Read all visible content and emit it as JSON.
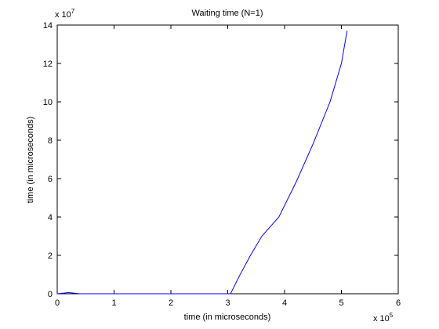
{
  "chart_data": {
    "type": "line",
    "title": "Waiting time (N=1)",
    "xlabel": "time (in microseconds)",
    "ylabel": "time (in microseconds)",
    "x_multiplier": {
      "base": "x 10",
      "exponent": "5"
    },
    "y_multiplier": {
      "base": "x 10",
      "exponent": "7"
    },
    "xlim": [
      0,
      6
    ],
    "xticks": [
      0,
      1,
      2,
      3,
      4,
      5,
      6
    ],
    "ylim": [
      0,
      14
    ],
    "yticks": [
      0,
      2,
      4,
      6,
      8,
      10,
      12,
      14
    ],
    "grid": false,
    "series": [
      {
        "name": "waiting time",
        "color": "#0000ff",
        "x": [
          0,
          0.1,
          0.2,
          0.3,
          0.4,
          1,
          2,
          3,
          3.05,
          3.2,
          3.4,
          3.6,
          3.9,
          4.2,
          4.5,
          4.8,
          5.0,
          5.1
        ],
        "values": [
          0,
          0.03,
          0.06,
          0.03,
          0,
          0,
          0,
          0,
          0,
          0.9,
          2,
          3,
          4,
          5.8,
          7.8,
          10,
          12,
          13.7
        ]
      }
    ]
  }
}
